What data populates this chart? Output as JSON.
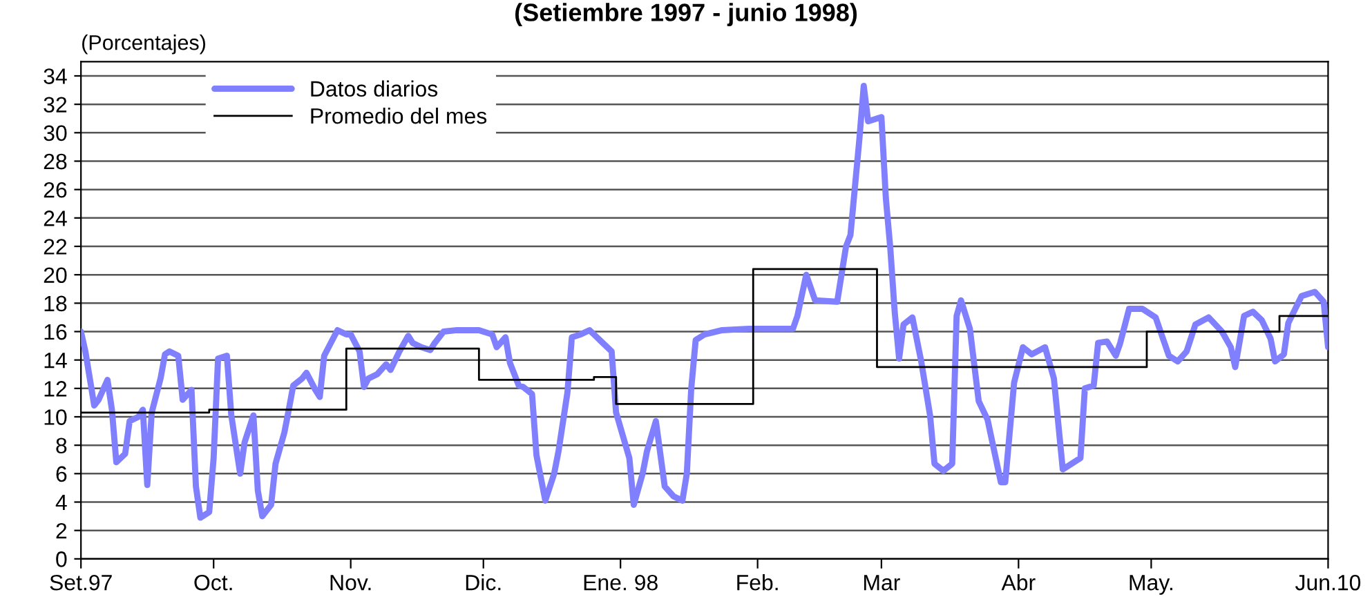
{
  "chart_data": {
    "type": "line",
    "title": "(Setiembre 1997 - junio 1998)",
    "ylabel": "(Porcentajes)",
    "xlim": [
      "1997-09-01",
      "1998-06-10"
    ],
    "xticks": [
      {
        "value": "1997-09-01",
        "label": "Set.97"
      },
      {
        "value": "1997-10-01",
        "label": "Oct."
      },
      {
        "value": "1997-11-01",
        "label": "Nov."
      },
      {
        "value": "1997-12-01",
        "label": "Dic."
      },
      {
        "value": "1998-01-01",
        "label": "Ene. 98"
      },
      {
        "value": "1998-02-01",
        "label": "Feb."
      },
      {
        "value": "1998-03-01",
        "label": "Mar"
      },
      {
        "value": "1998-04-01",
        "label": "Abr"
      },
      {
        "value": "1998-05-01",
        "label": "May."
      },
      {
        "value": "1998-06-10",
        "label": "Jun.10"
      }
    ],
    "ylim": [
      0,
      35
    ],
    "yticks": [
      0,
      2,
      4,
      6,
      8,
      10,
      12,
      14,
      16,
      18,
      20,
      22,
      24,
      26,
      28,
      30,
      32,
      34
    ],
    "grid": "y",
    "legend": "top left",
    "marker": "none",
    "line_style": "solid",
    "series": [
      {
        "name": "Datos diarios",
        "color": "#8080ff",
        "x": [
          "1997-09-01",
          "1997-09-02",
          "1997-09-04",
          "1997-09-05",
          "1997-09-07",
          "1997-09-08",
          "1997-09-09",
          "1997-09-11",
          "1997-09-12",
          "1997-09-14",
          "1997-09-15",
          "1997-09-16",
          "1997-09-17",
          "1997-09-19",
          "1997-09-20",
          "1997-09-21",
          "1997-09-23",
          "1997-09-24",
          "1997-09-26",
          "1997-09-27",
          "1997-09-28",
          "1997-09-30",
          "1997-10-01",
          "1997-10-02",
          "1997-10-04",
          "1997-10-05",
          "1997-10-07",
          "1997-10-08",
          "1997-10-10",
          "1997-10-11",
          "1997-10-12",
          "1997-10-14",
          "1997-10-15",
          "1997-10-17",
          "1997-10-18",
          "1997-10-19",
          "1997-10-21",
          "1997-10-22",
          "1997-10-24",
          "1997-10-25",
          "1997-10-26",
          "1997-10-28",
          "1997-10-29",
          "1997-10-31",
          "1997-11-01",
          "1997-11-03",
          "1997-11-04",
          "1997-11-05",
          "1997-11-07",
          "1997-11-09",
          "1997-11-10",
          "1997-11-12",
          "1997-11-14",
          "1997-11-15",
          "1997-11-17",
          "1997-11-19",
          "1997-11-20",
          "1997-11-22",
          "1997-11-25",
          "1997-11-28",
          "1997-11-30",
          "1997-12-03",
          "1997-12-04",
          "1997-12-06",
          "1997-12-07",
          "1997-12-09",
          "1997-12-10",
          "1997-12-12",
          "1997-12-13",
          "1997-12-15",
          "1997-12-17",
          "1997-12-18",
          "1997-12-20",
          "1997-12-21",
          "1997-12-23",
          "1997-12-25",
          "1997-12-26",
          "1997-12-28",
          "1997-12-30",
          "1997-12-31",
          "1998-01-03",
          "1998-01-04",
          "1998-01-06",
          "1998-01-07",
          "1998-01-09",
          "1998-01-11",
          "1998-01-13",
          "1998-01-15",
          "1998-01-16",
          "1998-01-17",
          "1998-01-18",
          "1998-01-20",
          "1998-01-24",
          "1998-01-30",
          "1998-02-05",
          "1998-02-09",
          "1998-02-10",
          "1998-02-12",
          "1998-02-14",
          "1998-02-19",
          "1998-02-21",
          "1998-02-22",
          "1998-02-24",
          "1998-02-25",
          "1998-02-26",
          "1998-03-01",
          "1998-03-02",
          "1998-03-03",
          "1998-03-04",
          "1998-03-05",
          "1998-03-06",
          "1998-03-08",
          "1998-03-10",
          "1998-03-12",
          "1998-03-13",
          "1998-03-15",
          "1998-03-17",
          "1998-03-18",
          "1998-03-19",
          "1998-03-21",
          "1998-03-23",
          "1998-03-25",
          "1998-03-28",
          "1998-03-29",
          "1998-03-31",
          "1998-04-02",
          "1998-04-04",
          "1998-04-07",
          "1998-04-09",
          "1998-04-11",
          "1998-04-15",
          "1998-04-16",
          "1998-04-18",
          "1998-04-19",
          "1998-04-21",
          "1998-04-23",
          "1998-04-24",
          "1998-04-26",
          "1998-04-29",
          "1998-05-02",
          "1998-05-05",
          "1998-05-07",
          "1998-05-09",
          "1998-05-11",
          "1998-05-14",
          "1998-05-17",
          "1998-05-19",
          "1998-05-20",
          "1998-05-22",
          "1998-05-24",
          "1998-05-26",
          "1998-05-28",
          "1998-05-29",
          "1998-05-31",
          "1998-06-01",
          "1998-06-04",
          "1998-06-07",
          "1998-06-09",
          "1998-06-10"
        ],
        "values": [
          16.0,
          14.6,
          10.8,
          11.2,
          12.6,
          10.5,
          6.8,
          7.4,
          9.7,
          10.0,
          10.5,
          5.2,
          10.3,
          12.7,
          14.4,
          14.6,
          14.3,
          11.2,
          11.9,
          5.1,
          2.9,
          3.3,
          7.1,
          14.1,
          14.3,
          10.1,
          6.0,
          8.2,
          10.1,
          4.8,
          3.0,
          3.8,
          6.7,
          8.9,
          10.5,
          12.2,
          12.7,
          13.1,
          11.9,
          11.4,
          14.3,
          15.5,
          16.1,
          15.8,
          15.8,
          14.6,
          12.1,
          12.7,
          13.0,
          13.7,
          13.3,
          14.6,
          15.7,
          15.2,
          14.9,
          14.7,
          15.2,
          16.0,
          16.1,
          16.1,
          16.1,
          15.8,
          14.9,
          15.6,
          13.8,
          12.2,
          12.1,
          11.6,
          7.3,
          4.1,
          6.0,
          7.6,
          11.7,
          15.6,
          15.8,
          16.1,
          15.8,
          15.2,
          14.6,
          10.3,
          7.1,
          3.8,
          6.0,
          7.6,
          9.7,
          5.1,
          4.4,
          4.1,
          6.0,
          12.0,
          15.4,
          15.8,
          16.1,
          16.2,
          16.2,
          16.2,
          17.1,
          20.0,
          18.2,
          18.1,
          22.0,
          22.8,
          29.5,
          33.3,
          30.8,
          31.1,
          25.4,
          21.9,
          17.4,
          14.1,
          16.5,
          17.0,
          13.9,
          10.1,
          6.7,
          6.2,
          6.7,
          17.1,
          18.2,
          16.2,
          11.1,
          9.8,
          5.4,
          5.4,
          12.4,
          14.9,
          14.4,
          14.9,
          12.7,
          6.3,
          7.1,
          12.0,
          12.2,
          15.2,
          15.3,
          14.3,
          15.2,
          17.6,
          17.6,
          17.0,
          14.3,
          13.9,
          14.6,
          16.5,
          17.0,
          16.0,
          14.9,
          13.5,
          17.1,
          17.4,
          16.8,
          15.5,
          13.9,
          14.4,
          16.6,
          18.5,
          18.8,
          18.1,
          14.9
        ]
      },
      {
        "name": "Promedio del mes",
        "type": "step",
        "color": "#000000",
        "x": [
          "1997-09-01",
          "1997-09-30",
          "1997-10-31",
          "1997-11-30",
          "1997-12-26",
          "1997-12-31",
          "1998-01-31",
          "1998-02-28",
          "1998-04-30",
          "1998-05-30",
          "1998-06-10"
        ],
        "values": [
          10.3,
          10.5,
          14.8,
          12.6,
          12.8,
          10.9,
          20.4,
          13.5,
          16.0,
          17.1,
          17.1
        ]
      }
    ]
  }
}
